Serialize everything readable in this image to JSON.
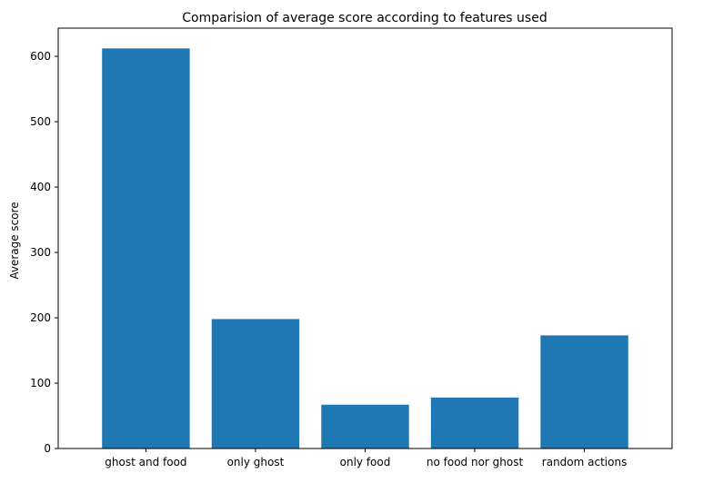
{
  "chart_data": {
    "type": "bar",
    "title": "Comparision of average score according to features used",
    "xlabel": "",
    "ylabel": "Average score",
    "categories": [
      "ghost and food",
      "only ghost",
      "only food",
      "no food nor ghost",
      "random actions"
    ],
    "values": [
      612,
      198,
      67,
      78,
      173
    ],
    "ylim": [
      0,
      643
    ],
    "yticks": [
      0,
      100,
      200,
      300,
      400,
      500,
      600
    ],
    "grid": false,
    "bar_color": "#1f77b4"
  }
}
